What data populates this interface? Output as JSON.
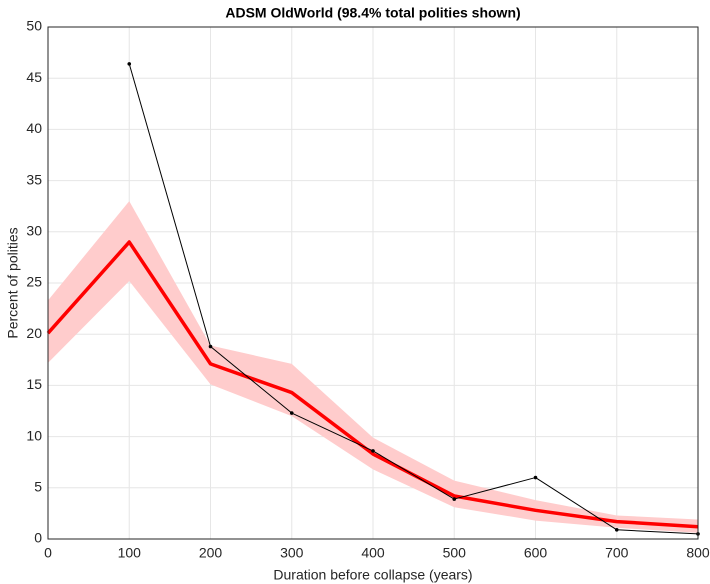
{
  "chart_data": {
    "type": "line",
    "title": "ADSM OldWorld (98.4% total polities shown)",
    "x_label": "Duration before collapse (years)",
    "y_label": "Percent of polities",
    "x": [
      0,
      100,
      200,
      300,
      400,
      500,
      600,
      700,
      800
    ],
    "band": {
      "color": "#ffcccc",
      "upper": [
        23.3,
        33.0,
        18.9,
        17.1,
        9.9,
        5.7,
        3.8,
        2.3,
        1.9
      ],
      "lower": [
        17.2,
        25.2,
        15.1,
        12.0,
        6.8,
        3.1,
        1.8,
        1.1,
        0.6
      ]
    },
    "series": [
      {
        "color": "#ff0000",
        "values": [
          20.1,
          29.0,
          17.1,
          14.3,
          8.3,
          4.2,
          2.8,
          1.7,
          1.2
        ]
      },
      {
        "color": "#000000",
        "values": [
          null,
          46.4,
          18.8,
          12.3,
          8.6,
          3.9,
          6.0,
          0.9,
          0.5
        ]
      }
    ],
    "xlim": [
      0,
      800
    ],
    "xticks": [
      0,
      100,
      200,
      300,
      400,
      500,
      600,
      700,
      800
    ],
    "ylim": [
      0,
      50
    ],
    "yticks": [
      0,
      5,
      10,
      15,
      20,
      25,
      30,
      35,
      40,
      45,
      50
    ],
    "grid": true
  }
}
